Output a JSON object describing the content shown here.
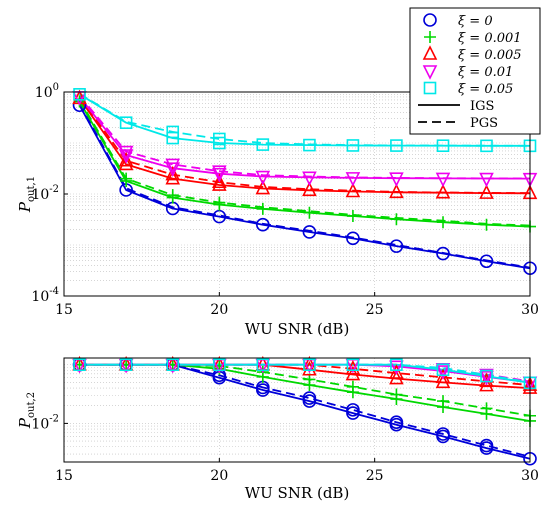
{
  "chart_data": [
    {
      "type": "line",
      "xlabel": "WU SNR (dB)",
      "ylabel_base": "P",
      "ylabel_sub": "out,1",
      "xlim": [
        15,
        30
      ],
      "ylim": [
        0.0001,
        1
      ],
      "yscale": "log",
      "grid": true,
      "x_ticks": [
        "15",
        "20",
        "25",
        "30"
      ],
      "y_ticks": [
        {
          "base": "10",
          "exp": "0",
          "value": 1
        },
        {
          "base": "10",
          "exp": "-2",
          "value": 0.01
        },
        {
          "base": "10",
          "exp": "-4",
          "value": 0.0001
        }
      ],
      "x_markers": [
        15.5,
        17.0,
        18.5,
        20.0,
        21.4,
        22.9,
        24.3,
        25.7,
        27.2,
        28.6,
        30.0
      ],
      "legend": {
        "placement": "top-right",
        "entries": [
          {
            "label": "ξ = 0",
            "color": "#0000d8",
            "marker": "circle"
          },
          {
            "label": "ξ = 0.001",
            "color": "#00d800",
            "marker": "plus"
          },
          {
            "label": "ξ = 0.005",
            "color": "#ff0000",
            "marker": "triangle-up"
          },
          {
            "label": "ξ = 0.01",
            "color": "#ee00ee",
            "marker": "triangle-down"
          },
          {
            "label": "ξ = 0.05",
            "color": "#00e8e8",
            "marker": "square"
          },
          {
            "label": "IGS",
            "color": "#000000",
            "line": "solid"
          },
          {
            "label": "PGS",
            "color": "#000000",
            "line": "dashed"
          }
        ]
      },
      "series": [
        {
          "name": "ξ = 0",
          "color": "#0000d8",
          "marker": "circle",
          "x": [
            15.5,
            17.0,
            18.5,
            20.0,
            21.4,
            22.9,
            24.3,
            25.7,
            27.2,
            28.6,
            30.0
          ],
          "igs": [
            0.55,
            0.012,
            0.0052,
            0.0036,
            0.0025,
            0.0018,
            0.00135,
            0.00095,
            0.00068,
            0.00048,
            0.00035
          ],
          "pgs": [
            0.6,
            0.013,
            0.0055,
            0.0038,
            0.0026,
            0.0019,
            0.0014,
            0.001,
            0.0007,
            0.0005,
            0.00036
          ]
        },
        {
          "name": "ξ = 0.001",
          "color": "#00d800",
          "marker": "plus",
          "x": [
            15.5,
            17.0,
            18.5,
            20.0,
            21.4,
            22.9,
            24.3,
            25.7,
            27.2,
            28.6,
            30.0
          ],
          "igs": [
            0.65,
            0.018,
            0.0085,
            0.0062,
            0.0051,
            0.0043,
            0.0037,
            0.0032,
            0.0028,
            0.0025,
            0.0023
          ],
          "pgs": [
            0.7,
            0.02,
            0.0095,
            0.0068,
            0.0055,
            0.0046,
            0.0039,
            0.0034,
            0.003,
            0.0026,
            0.0024
          ]
        },
        {
          "name": "ξ = 0.005",
          "color": "#ff0000",
          "marker": "triangle-up",
          "x": [
            15.5,
            17.0,
            18.5,
            20.0,
            21.4,
            22.9,
            24.3,
            25.7,
            27.2,
            28.6,
            30.0
          ],
          "igs": [
            0.75,
            0.038,
            0.02,
            0.015,
            0.0128,
            0.0118,
            0.0112,
            0.0108,
            0.0106,
            0.0104,
            0.0103
          ],
          "pgs": [
            0.8,
            0.045,
            0.024,
            0.017,
            0.0138,
            0.0124,
            0.0116,
            0.011,
            0.0107,
            0.0105,
            0.0104
          ]
        },
        {
          "name": "ξ = 0.01",
          "color": "#ee00ee",
          "marker": "triangle-down",
          "x": [
            15.5,
            17.0,
            18.5,
            20.0,
            21.4,
            22.9,
            24.3,
            25.7,
            27.2,
            28.6,
            30.0
          ],
          "igs": [
            0.8,
            0.058,
            0.032,
            0.025,
            0.022,
            0.0212,
            0.0207,
            0.0204,
            0.0202,
            0.0201,
            0.02
          ],
          "pgs": [
            0.85,
            0.068,
            0.038,
            0.028,
            0.0235,
            0.022,
            0.0212,
            0.0207,
            0.0204,
            0.0202,
            0.0201
          ]
        },
        {
          "name": "ξ = 0.05",
          "color": "#00e8e8",
          "marker": "square",
          "x": [
            15.5,
            17.0,
            18.5,
            20.0,
            21.4,
            22.9,
            24.3,
            25.7,
            27.2,
            28.6,
            30.0
          ],
          "igs": [
            0.9,
            0.25,
            0.125,
            0.1,
            0.093,
            0.091,
            0.0895,
            0.089,
            0.0885,
            0.088,
            0.088
          ],
          "pgs": [
            0.92,
            0.26,
            0.165,
            0.12,
            0.1,
            0.094,
            0.091,
            0.0895,
            0.089,
            0.0885,
            0.088
          ]
        }
      ]
    },
    {
      "type": "line",
      "xlabel": "WU SNR (dB)",
      "ylabel_base": "P",
      "ylabel_sub": "out,2",
      "xlim": [
        15,
        30
      ],
      "ylim": [
        0.0022,
        0.13
      ],
      "yscale": "log",
      "grid": true,
      "x_ticks": [
        "15",
        "20",
        "25",
        "30"
      ],
      "y_ticks": [
        {
          "base": "10",
          "exp": "-2",
          "value": 0.01
        }
      ],
      "x_markers": [
        15.5,
        17.0,
        18.5,
        20.0,
        21.4,
        22.9,
        24.3,
        25.7,
        27.2,
        28.6,
        30.0
      ],
      "series": [
        {
          "name": "ξ = 0",
          "color": "#0000d8",
          "marker": "circle",
          "x": [
            15.5,
            17.0,
            18.5,
            20.0,
            21.4,
            22.9,
            24.3,
            25.7,
            27.2,
            28.6,
            30.0
          ],
          "igs": [
            0.1,
            0.1,
            0.1,
            0.06,
            0.037,
            0.024,
            0.015,
            0.0095,
            0.006,
            0.0038,
            0.0025
          ],
          "pgs": [
            0.1,
            0.1,
            0.1,
            0.066,
            0.041,
            0.027,
            0.017,
            0.0105,
            0.0066,
            0.0042,
            0.0027
          ]
        },
        {
          "name": "ξ = 0.001",
          "color": "#00d800",
          "marker": "plus",
          "x": [
            15.5,
            17.0,
            18.5,
            20.0,
            21.4,
            22.9,
            24.3,
            25.7,
            27.2,
            28.6,
            30.0
          ],
          "igs": [
            0.1,
            0.1,
            0.1,
            0.085,
            0.062,
            0.045,
            0.034,
            0.026,
            0.019,
            0.0145,
            0.011
          ],
          "pgs": [
            0.1,
            0.1,
            0.1,
            0.095,
            0.075,
            0.056,
            0.042,
            0.031,
            0.024,
            0.018,
            0.0135
          ]
        },
        {
          "name": "ξ = 0.005",
          "color": "#ff0000",
          "marker": "triangle-up",
          "x": [
            15.5,
            17.0,
            18.5,
            20.0,
            21.4,
            22.9,
            24.3,
            25.7,
            27.2,
            28.6,
            30.0
          ],
          "igs": [
            0.1,
            0.1,
            0.1,
            0.1,
            0.1,
            0.082,
            0.068,
            0.058,
            0.05,
            0.044,
            0.04
          ],
          "pgs": [
            0.1,
            0.1,
            0.1,
            0.1,
            0.1,
            0.1,
            0.085,
            0.072,
            0.061,
            0.052,
            0.045
          ]
        },
        {
          "name": "ξ = 0.01",
          "color": "#ee00ee",
          "marker": "triangle-down",
          "x": [
            15.5,
            17.0,
            18.5,
            20.0,
            21.4,
            22.9,
            24.3,
            25.7,
            27.2,
            28.6,
            30.0
          ],
          "igs": [
            0.1,
            0.1,
            0.1,
            0.1,
            0.1,
            0.1,
            0.1,
            0.094,
            0.078,
            0.062,
            0.05
          ],
          "pgs": [
            0.1,
            0.1,
            0.1,
            0.1,
            0.1,
            0.1,
            0.1,
            0.1,
            0.085,
            0.068,
            0.052
          ]
        },
        {
          "name": "ξ = 0.05",
          "color": "#00e8e8",
          "marker": "square",
          "x": [
            15.5,
            17.0,
            18.5,
            20.0,
            21.4,
            22.9,
            24.3,
            25.7,
            27.2,
            28.6,
            30.0
          ],
          "igs": [
            0.1,
            0.1,
            0.1,
            0.1,
            0.1,
            0.1,
            0.1,
            0.1,
            0.082,
            0.064,
            0.049
          ],
          "pgs": [
            0.1,
            0.1,
            0.1,
            0.1,
            0.1,
            0.1,
            0.1,
            0.1,
            0.088,
            0.067,
            0.05
          ]
        }
      ]
    }
  ]
}
